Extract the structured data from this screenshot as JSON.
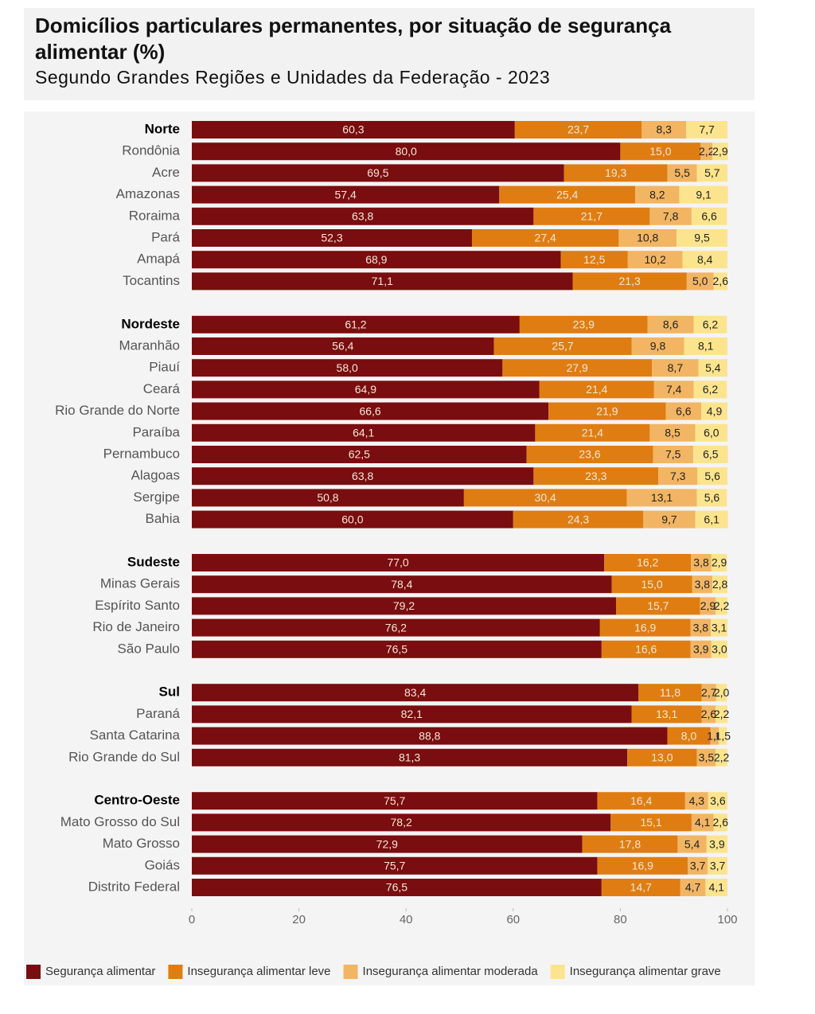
{
  "chart_data": {
    "type": "stacked-bar-horizontal",
    "title": "Domicílios particulares permanentes, por situação de segurança alimentar (%)",
    "subtitle": "Segundo Grandes Regiões e Unidades da Federação - 2023",
    "categories": [
      "Norte",
      "Rondônia",
      "Acre",
      "Amazonas",
      "Roraima",
      "Pará",
      "Amapá",
      "Tocantins",
      null,
      "Nordeste",
      "Maranhão",
      "Piauí",
      "Ceará",
      "Rio Grande do Norte",
      "Paraíba",
      "Pernambuco",
      "Alagoas",
      "Sergipe",
      "Bahia",
      null,
      "Sudeste",
      "Minas Gerais",
      "Espírito Santo",
      "Rio de Janeiro",
      "São Paulo",
      null,
      "Sul",
      "Paraná",
      "Santa Catarina",
      "Rio Grande do Sul",
      null,
      "Centro-Oeste",
      "Mato Grosso do Sul",
      "Mato Grosso",
      "Goiás",
      "Distrito Federal"
    ],
    "series": [
      {
        "name": "Segurança alimentar",
        "color": "#7a0d0f",
        "values": [
          60.3,
          80.0,
          69.5,
          57.4,
          63.8,
          52.3,
          68.9,
          71.1,
          null,
          61.2,
          56.4,
          58.0,
          64.9,
          66.6,
          64.1,
          62.5,
          63.8,
          50.8,
          60.0,
          null,
          77.0,
          78.4,
          79.2,
          76.2,
          76.5,
          null,
          83.4,
          82.1,
          88.8,
          81.3,
          null,
          75.7,
          78.2,
          72.9,
          75.7,
          76.5
        ],
        "value_labels": [
          "60,3",
          "80,0",
          "69,5",
          "57,4",
          "63,8",
          "52,3",
          "68,9",
          "71,1",
          null,
          "61,2",
          "56,4",
          "58,0",
          "64,9",
          "66,6",
          "64,1",
          "62,5",
          "63,8",
          "50,8",
          "60,0",
          null,
          "77,0",
          "78,4",
          "79,2",
          "76,2",
          "76,5",
          null,
          "83,4",
          "82,1",
          "88,8",
          "81,3",
          null,
          "75,7",
          "78,2",
          "72,9",
          "75,7",
          "76,5"
        ]
      },
      {
        "name": "Insegurança alimentar leve",
        "color": "#df7d12",
        "values": [
          23.7,
          15.0,
          19.3,
          25.4,
          21.7,
          27.4,
          12.5,
          21.3,
          null,
          23.9,
          25.7,
          27.9,
          21.4,
          21.9,
          21.4,
          23.6,
          23.3,
          30.4,
          24.3,
          null,
          16.2,
          15.0,
          15.7,
          16.9,
          16.6,
          null,
          11.8,
          13.1,
          8.0,
          13.0,
          null,
          16.4,
          15.1,
          17.8,
          16.9,
          14.7
        ],
        "value_labels": [
          "23,7",
          "15,0",
          "19,3",
          "25,4",
          "21,7",
          "27,4",
          "12,5",
          "21,3",
          null,
          "23,9",
          "25,7",
          "27,9",
          "21,4",
          "21,9",
          "21,4",
          "23,6",
          "23,3",
          "30,4",
          "24,3",
          null,
          "16,2",
          "15,0",
          "15,7",
          "16,9",
          "16,6",
          null,
          "11,8",
          "13,1",
          "8,0",
          "13,0",
          null,
          "16,4",
          "15,1",
          "17,8",
          "16,9",
          "14,7"
        ]
      },
      {
        "name": "Insegurança alimentar moderada",
        "color": "#f2b563",
        "values": [
          8.3,
          2.2,
          5.5,
          8.2,
          7.8,
          10.8,
          10.2,
          5.0,
          null,
          8.6,
          9.8,
          8.7,
          7.4,
          6.6,
          8.5,
          7.5,
          7.3,
          13.1,
          9.7,
          null,
          3.8,
          3.8,
          2.9,
          3.8,
          3.9,
          null,
          2.7,
          2.6,
          1.6,
          3.5,
          null,
          4.3,
          4.1,
          5.4,
          3.7,
          4.7
        ],
        "value_labels": [
          "8,3",
          "2,2",
          "5,5",
          "8,2",
          "7,8",
          "10,8",
          "10,2",
          "5,0",
          null,
          "8,6",
          "9,8",
          "8,7",
          "7,4",
          "6,6",
          "8,5",
          "7,5",
          "7,3",
          "13,1",
          "9,7",
          null,
          "3,8",
          "3,8",
          "2,9",
          "3,8",
          "3,9",
          null,
          "2,7",
          "2,6",
          "1,6",
          "3,5",
          null,
          "4,3",
          "4,1",
          "5,4",
          "3,7",
          "4,7"
        ]
      },
      {
        "name": "Insegurança alimentar grave",
        "color": "#fbe48d",
        "values": [
          7.7,
          2.9,
          5.7,
          9.1,
          6.6,
          9.5,
          8.4,
          2.6,
          null,
          6.2,
          8.1,
          5.4,
          6.2,
          4.9,
          6.0,
          6.5,
          5.6,
          5.6,
          6.1,
          null,
          2.9,
          2.8,
          2.2,
          3.1,
          3.0,
          null,
          2.0,
          2.2,
          1.5,
          2.2,
          null,
          3.6,
          2.6,
          3.9,
          3.7,
          4.1
        ],
        "value_labels": [
          "7,7",
          "2,9",
          "5,7",
          "9,1",
          "6,6",
          "9,5",
          "8,4",
          "2,6",
          null,
          "6,2",
          "8,1",
          "5,4",
          "6,2",
          "4,9",
          "6,0",
          "6,5",
          "5,6",
          "5,6",
          "6,1",
          null,
          "2,9",
          "2,8",
          "2,2",
          "3,1",
          "3,0",
          null,
          "2,0",
          "2,2",
          "1,5",
          "2,2",
          null,
          "3,6",
          "2,6",
          "3,9",
          "3,7",
          "4,1"
        ]
      }
    ],
    "xlim": [
      0,
      100
    ],
    "xticks": [
      0,
      20,
      40,
      60,
      80,
      100
    ],
    "grid": false,
    "legend": "bottom"
  }
}
